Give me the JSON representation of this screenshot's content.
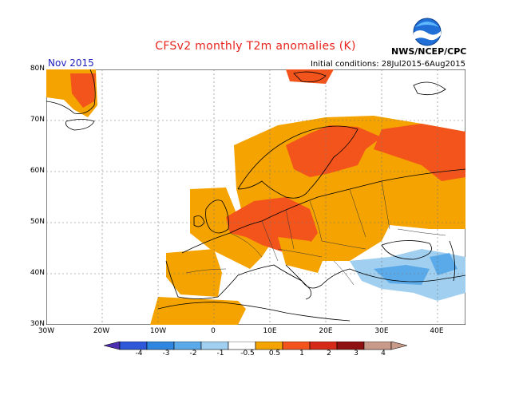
{
  "header": {
    "title": "CFSv2 monthly T2m anomalies (K)",
    "month": "Nov 2015",
    "initial_conditions": "Initial conditions: 28Jul2015-6Aug2015",
    "agency": "NWS/NCEP/CPC",
    "logo_text": "NOAA"
  },
  "map": {
    "lat_labels": [
      "80N",
      "70N",
      "60N",
      "50N",
      "40N",
      "30N"
    ],
    "lon_labels": [
      "30W",
      "20W",
      "10W",
      "0",
      "10E",
      "20E",
      "30E",
      "40E"
    ]
  },
  "colorbar": {
    "labels": [
      "-4",
      "-3",
      "-2",
      "-1",
      "-0.5",
      "0.5",
      "1",
      "2",
      "3",
      "4"
    ],
    "colors": [
      "#4c2fb0",
      "#2f57d9",
      "#2f86e0",
      "#5aa9e8",
      "#a0cfef",
      "#ffffff",
      "#f5a300",
      "#f3541c",
      "#d42a17",
      "#8f1010",
      "#c89a8a"
    ]
  },
  "colors": {
    "anomaly_05_1": "#f5a300",
    "anomaly_1_2": "#f3541c",
    "anomaly_2_3": "#d42a17",
    "anomaly_neg_05_1": "#a0cfef",
    "anomaly_neg_1_2": "#5aa9e8",
    "title": "#e8231c",
    "month": "#2020c0"
  }
}
